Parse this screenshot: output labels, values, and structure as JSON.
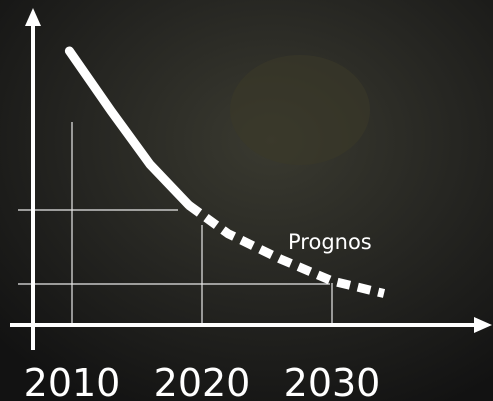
{
  "chart_data": {
    "type": "line",
    "series": [
      {
        "color": "#ffffff",
        "x": [
          2009.8,
          2013,
          2016,
          2019
        ],
        "values": [
          87,
          68,
          51,
          38
        ]
      },
      {
        "name": "Prognos",
        "color": "#ffffff",
        "dashed": true,
        "x": [
          2019,
          2022,
          2026,
          2030,
          2034
        ],
        "values": [
          38,
          29,
          21,
          14,
          10
        ]
      }
    ],
    "xlim": [
      2007,
      2042
    ],
    "xticks": [
      2010,
      2020,
      2030
    ],
    "ylim": [
      0,
      100
    ]
  }
}
